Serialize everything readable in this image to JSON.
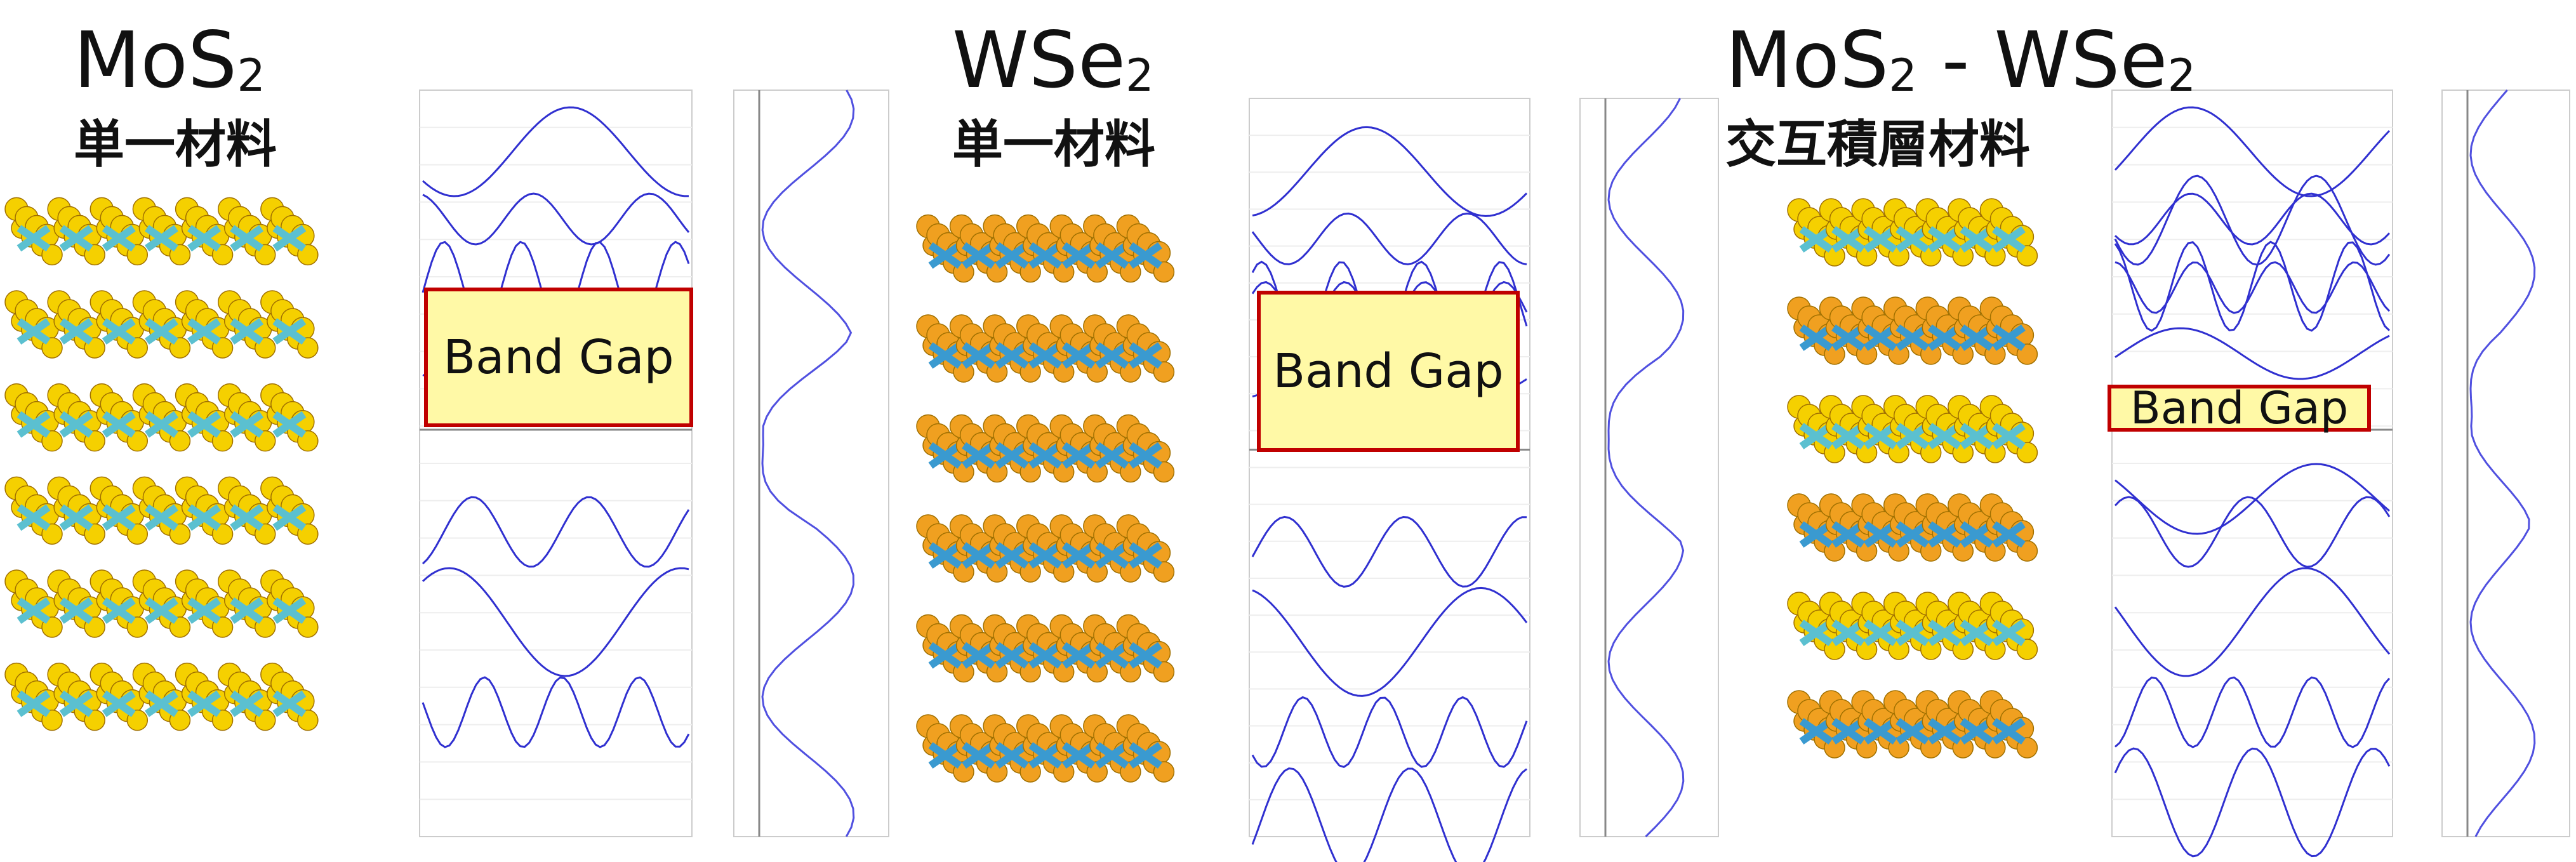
{
  "panels": [
    {
      "title": [
        "MoS",
        "2"
      ],
      "subtitle": "単一材料",
      "band_gap": "Band Gap"
    },
    {
      "title": [
        "WSe",
        "2"
      ],
      "subtitle": "単一材料",
      "band_gap": "Band Gap"
    },
    {
      "title": [
        "MoS",
        "2",
        " - WSe",
        "2"
      ],
      "subtitle": "交互積層材料",
      "band_gap": "Band Gap"
    }
  ]
}
